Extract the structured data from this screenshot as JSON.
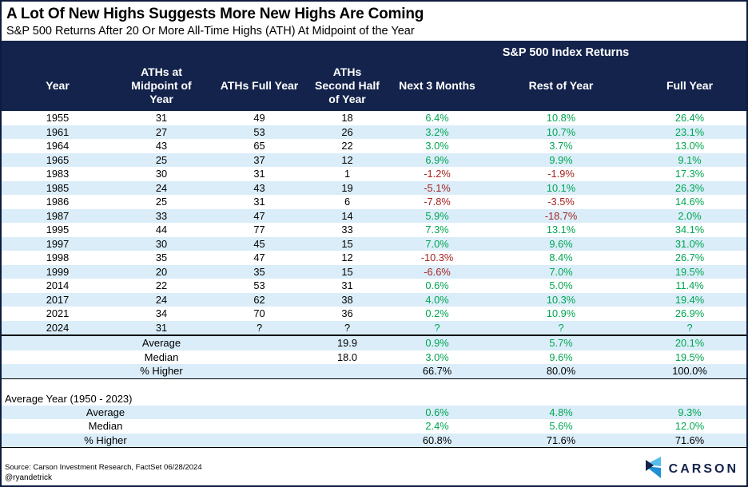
{
  "title": "A Lot Of New Highs Suggests More New Highs Are Coming",
  "subtitle": "S&P 500 Returns After 20 Or More All-Time Highs (ATH) At Midpoint of the Year",
  "table": {
    "group_header": "S&P 500 Index Returns",
    "columns": [
      "Year",
      "ATHs at Midpoint of Year",
      "ATHs Full Year",
      "ATHs Second Half of Year",
      "Next 3 Months",
      "Rest of Year",
      "Full Year"
    ],
    "rows": [
      [
        "1955",
        "31",
        "49",
        "18",
        "6.4%",
        "10.8%",
        "26.4%"
      ],
      [
        "1961",
        "27",
        "53",
        "26",
        "3.2%",
        "10.7%",
        "23.1%"
      ],
      [
        "1964",
        "43",
        "65",
        "22",
        "3.0%",
        "3.7%",
        "13.0%"
      ],
      [
        "1965",
        "25",
        "37",
        "12",
        "6.9%",
        "9.9%",
        "9.1%"
      ],
      [
        "1983",
        "30",
        "31",
        "1",
        "-1.2%",
        "-1.9%",
        "17.3%"
      ],
      [
        "1985",
        "24",
        "43",
        "19",
        "-5.1%",
        "10.1%",
        "26.3%"
      ],
      [
        "1986",
        "25",
        "31",
        "6",
        "-7.8%",
        "-3.5%",
        "14.6%"
      ],
      [
        "1987",
        "33",
        "47",
        "14",
        "5.9%",
        "-18.7%",
        "2.0%"
      ],
      [
        "1995",
        "44",
        "77",
        "33",
        "7.3%",
        "13.1%",
        "34.1%"
      ],
      [
        "1997",
        "30",
        "45",
        "15",
        "7.0%",
        "9.6%",
        "31.0%"
      ],
      [
        "1998",
        "35",
        "47",
        "12",
        "-10.3%",
        "8.4%",
        "26.7%"
      ],
      [
        "1999",
        "20",
        "35",
        "15",
        "-6.6%",
        "7.0%",
        "19.5%"
      ],
      [
        "2014",
        "22",
        "53",
        "31",
        "0.6%",
        "5.0%",
        "11.4%"
      ],
      [
        "2017",
        "24",
        "62",
        "38",
        "4.0%",
        "10.3%",
        "19.4%"
      ],
      [
        "2021",
        "34",
        "70",
        "36",
        "0.2%",
        "10.9%",
        "26.9%"
      ],
      [
        "2024",
        "31",
        "?",
        "?",
        "?",
        "?",
        "?"
      ]
    ]
  },
  "summary_ath": {
    "rows": [
      {
        "label": "Average",
        "ath_second_half": "19.9",
        "next_3_months": "0.9%",
        "rest_of_year": "5.7%",
        "full_year": "20.1%",
        "value_color": "green"
      },
      {
        "label": "Median",
        "ath_second_half": "18.0",
        "next_3_months": "3.0%",
        "rest_of_year": "9.6%",
        "full_year": "19.5%",
        "value_color": "green"
      },
      {
        "label": "% Higher",
        "ath_second_half": "",
        "next_3_months": "66.7%",
        "rest_of_year": "80.0%",
        "full_year": "100.0%",
        "value_color": "black"
      }
    ]
  },
  "summary_avg_year": {
    "section_label": "Average Year (1950 - 2023)",
    "rows": [
      {
        "label": "Average",
        "next_3_months": "0.6%",
        "rest_of_year": "4.8%",
        "full_year": "9.3%",
        "value_color": "green"
      },
      {
        "label": "Median",
        "next_3_months": "2.4%",
        "rest_of_year": "5.6%",
        "full_year": "12.0%",
        "value_color": "green"
      },
      {
        "label": "% Higher",
        "next_3_months": "60.8%",
        "rest_of_year": "71.6%",
        "full_year": "71.6%",
        "value_color": "black"
      }
    ]
  },
  "footer": {
    "source": "Source: Carson Investment Research, FactSet 06/28/2024",
    "handle": "@ryandetrick",
    "logo_text": "CARSON"
  },
  "colors": {
    "header_navy": "#13234B",
    "row_alt_blue": "#DAEDF9",
    "positive_green": "#00A551",
    "negative_red": "#A52521",
    "logo_light_blue": "#56BDEB",
    "logo_mid_blue": "#1F8FD6"
  },
  "chart_data": {
    "type": "table",
    "title": "A Lot Of New Highs Suggests More New Highs Are Coming",
    "subtitle": "S&P 500 Returns After 20 Or More All-Time Highs (ATH) At Midpoint of the Year",
    "columns": [
      "Year",
      "ATHs at Midpoint of Year",
      "ATHs Full Year",
      "ATHs Second Half of Year",
      "Next 3 Months",
      "Rest of Year",
      "Full Year"
    ],
    "rows": [
      [
        1955,
        31,
        49,
        18,
        6.4,
        10.8,
        26.4
      ],
      [
        1961,
        27,
        53,
        26,
        3.2,
        10.7,
        23.1
      ],
      [
        1964,
        43,
        65,
        22,
        3.0,
        3.7,
        13.0
      ],
      [
        1965,
        25,
        37,
        12,
        6.9,
        9.9,
        9.1
      ],
      [
        1983,
        30,
        31,
        1,
        -1.2,
        -1.9,
        17.3
      ],
      [
        1985,
        24,
        43,
        19,
        -5.1,
        10.1,
        26.3
      ],
      [
        1986,
        25,
        31,
        6,
        -7.8,
        -3.5,
        14.6
      ],
      [
        1987,
        33,
        47,
        14,
        5.9,
        -18.7,
        2.0
      ],
      [
        1995,
        44,
        77,
        33,
        7.3,
        13.1,
        34.1
      ],
      [
        1997,
        30,
        45,
        15,
        7.0,
        9.6,
        31.0
      ],
      [
        1998,
        35,
        47,
        12,
        -10.3,
        8.4,
        26.7
      ],
      [
        1999,
        20,
        35,
        15,
        -6.6,
        7.0,
        19.5
      ],
      [
        2014,
        22,
        53,
        31,
        0.6,
        5.0,
        11.4
      ],
      [
        2017,
        24,
        62,
        38,
        4.0,
        10.3,
        19.4
      ],
      [
        2021,
        34,
        70,
        36,
        0.2,
        10.9,
        26.9
      ],
      [
        2024,
        31,
        null,
        null,
        null,
        null,
        null
      ]
    ],
    "summary_after_20_aths": {
      "average": {
        "aths_second_half": 19.9,
        "next_3_months": 0.9,
        "rest_of_year": 5.7,
        "full_year": 20.1
      },
      "median": {
        "aths_second_half": 18.0,
        "next_3_months": 3.0,
        "rest_of_year": 9.6,
        "full_year": 19.5
      },
      "pct_higher": {
        "next_3_months": 66.7,
        "rest_of_year": 80.0,
        "full_year": 100.0
      }
    },
    "summary_average_year_1950_2023": {
      "average": {
        "next_3_months": 0.6,
        "rest_of_year": 4.8,
        "full_year": 9.3
      },
      "median": {
        "next_3_months": 2.4,
        "rest_of_year": 5.6,
        "full_year": 12.0
      },
      "pct_higher": {
        "next_3_months": 60.8,
        "rest_of_year": 71.6,
        "full_year": 71.6
      }
    }
  }
}
